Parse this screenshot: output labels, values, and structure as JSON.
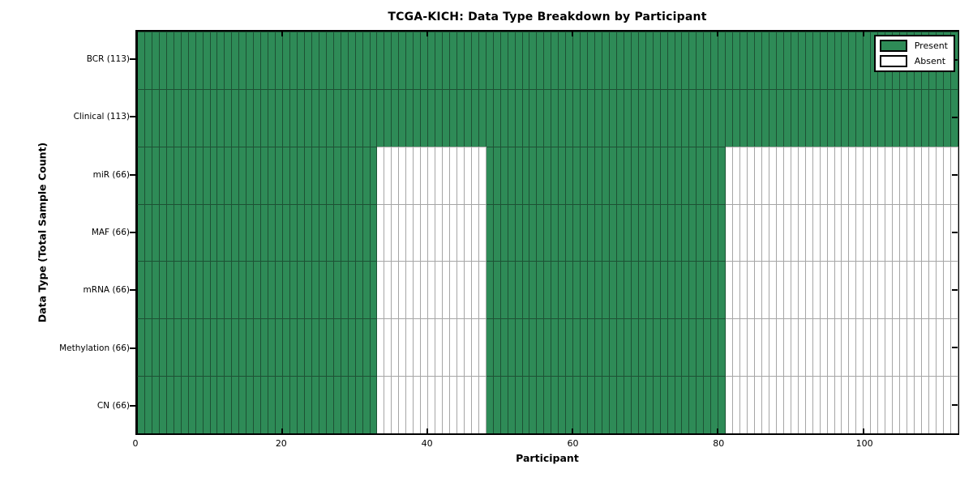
{
  "figure": {
    "title": "TCGA-KICH: Data Type Breakdown by Participant",
    "xlabel": "Participant",
    "ylabel": "Data Type (Total Sample Count)"
  },
  "legend": {
    "items": [
      {
        "label": "Present",
        "color": "#2e8b57",
        "edge": "#000000"
      },
      {
        "label": "Absent",
        "color": "#ffffff",
        "edge": "#000000"
      }
    ],
    "position": "upper right"
  },
  "chart_data": {
    "type": "heatmap",
    "title": "TCGA-KICH: Data Type Breakdown by Participant",
    "xlabel": "Participant",
    "ylabel": "Data Type (Total Sample Count)",
    "xlim": [
      0,
      113
    ],
    "x_ticks": [
      0,
      20,
      40,
      60,
      80,
      100
    ],
    "n_participants": 113,
    "grid": false,
    "legend_position": "upper right",
    "categories": [
      "BCR (113)",
      "Clinical (113)",
      "miR (66)",
      "MAF (66)",
      "mRNA (66)",
      "Methylation (66)",
      "CN (66)"
    ],
    "rows": [
      {
        "label": "BCR (113)",
        "total_samples": 113,
        "present_ranges": [
          [
            0,
            113
          ]
        ],
        "absent_ranges": []
      },
      {
        "label": "Clinical (113)",
        "total_samples": 113,
        "present_ranges": [
          [
            0,
            113
          ]
        ],
        "absent_ranges": []
      },
      {
        "label": "miR (66)",
        "total_samples": 66,
        "present_ranges": [
          [
            0,
            33
          ],
          [
            48,
            81
          ]
        ],
        "absent_ranges": [
          [
            33,
            48
          ],
          [
            81,
            113
          ]
        ]
      },
      {
        "label": "MAF (66)",
        "total_samples": 66,
        "present_ranges": [
          [
            0,
            33
          ],
          [
            48,
            81
          ]
        ],
        "absent_ranges": [
          [
            33,
            48
          ],
          [
            81,
            113
          ]
        ]
      },
      {
        "label": "mRNA (66)",
        "total_samples": 66,
        "present_ranges": [
          [
            0,
            33
          ],
          [
            48,
            81
          ]
        ],
        "absent_ranges": [
          [
            33,
            48
          ],
          [
            81,
            113
          ]
        ]
      },
      {
        "label": "Methylation (66)",
        "total_samples": 66,
        "present_ranges": [
          [
            0,
            33
          ],
          [
            48,
            81
          ]
        ],
        "absent_ranges": [
          [
            33,
            48
          ],
          [
            81,
            113
          ]
        ]
      },
      {
        "label": "CN (66)",
        "total_samples": 66,
        "present_ranges": [
          [
            0,
            33
          ],
          [
            48,
            81
          ]
        ],
        "absent_ranges": [
          [
            33,
            48
          ],
          [
            81,
            113
          ]
        ]
      }
    ],
    "colors": {
      "present_fill": "#2e8b57",
      "present_edge": "#1d5134",
      "absent_fill": "#ffffff",
      "absent_edge": "#a6a6a6",
      "spine": "#000000"
    }
  }
}
